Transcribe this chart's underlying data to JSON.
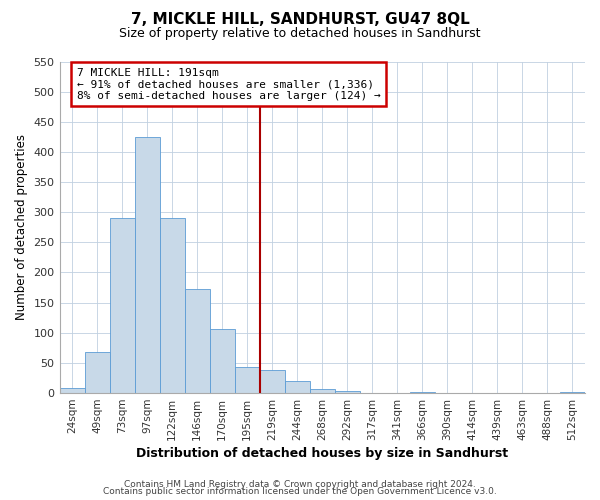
{
  "title": "7, MICKLE HILL, SANDHURST, GU47 8QL",
  "subtitle": "Size of property relative to detached houses in Sandhurst",
  "xlabel": "Distribution of detached houses by size in Sandhurst",
  "ylabel": "Number of detached properties",
  "bar_labels": [
    "24sqm",
    "49sqm",
    "73sqm",
    "97sqm",
    "122sqm",
    "146sqm",
    "170sqm",
    "195sqm",
    "219sqm",
    "244sqm",
    "268sqm",
    "292sqm",
    "317sqm",
    "341sqm",
    "366sqm",
    "390sqm",
    "414sqm",
    "439sqm",
    "463sqm",
    "488sqm",
    "512sqm"
  ],
  "bar_values": [
    8,
    68,
    291,
    424,
    290,
    173,
    106,
    44,
    38,
    20,
    7,
    3,
    0,
    0,
    2,
    0,
    0,
    0,
    0,
    0,
    2
  ],
  "bar_color": "#c8d9e8",
  "bar_edge_color": "#5b9bd5",
  "reference_line_index": 7,
  "reference_line_color": "#aa0000",
  "annotation_line1": "7 MICKLE HILL: 191sqm",
  "annotation_line2": "← 91% of detached houses are smaller (1,336)",
  "annotation_line3": "8% of semi-detached houses are larger (124) →",
  "annotation_box_color": "#cc0000",
  "ylim": [
    0,
    550
  ],
  "yticks": [
    0,
    50,
    100,
    150,
    200,
    250,
    300,
    350,
    400,
    450,
    500,
    550
  ],
  "footer_line1": "Contains HM Land Registry data © Crown copyright and database right 2024.",
  "footer_line2": "Contains public sector information licensed under the Open Government Licence v3.0.",
  "bg_color": "#ffffff",
  "grid_color": "#c0d0e0"
}
